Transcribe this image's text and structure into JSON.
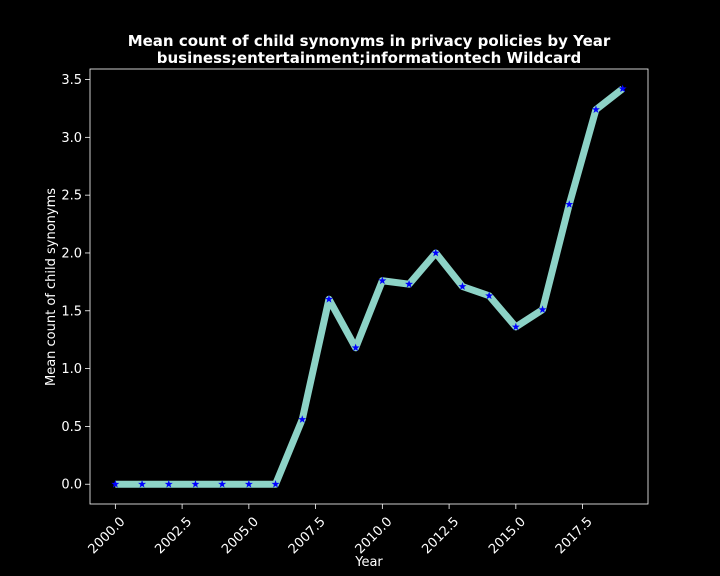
{
  "chart_data": {
    "type": "line",
    "title_line1": "Mean count of child synonyms in privacy policies by Year",
    "title_line2": "business;entertainment;informationtech Wildcard",
    "xlabel": "Year",
    "ylabel": "Mean count of child synonyms",
    "xlim": [
      1999.05,
      2019.95
    ],
    "ylim": [
      -0.171,
      3.591
    ],
    "x_ticks": [
      2000.0,
      2002.5,
      2005.0,
      2007.5,
      2010.0,
      2012.5,
      2015.0,
      2017.5
    ],
    "x_tick_labels": [
      "2000.0",
      "2002.5",
      "2005.0",
      "2007.5",
      "2010.0",
      "2012.5",
      "2015.0",
      "2017.5"
    ],
    "y_ticks": [
      0.0,
      0.5,
      1.0,
      1.5,
      2.0,
      2.5,
      3.0,
      3.5
    ],
    "y_tick_labels": [
      "0.0",
      "0.5",
      "1.0",
      "1.5",
      "2.0",
      "2.5",
      "3.0",
      "3.5"
    ],
    "grid": false,
    "line_color": "#8dd3c7",
    "marker_color": "#0000ff",
    "marker": "star",
    "series": [
      {
        "x": [
          2000,
          2001,
          2002,
          2003,
          2004,
          2005,
          2006,
          2007,
          2008,
          2009,
          2010,
          2011,
          2012,
          2013,
          2014,
          2015,
          2016,
          2017,
          2018,
          2019
        ],
        "values": [
          0.0,
          0.0,
          0.0,
          0.0,
          0.0,
          0.0,
          0.0,
          0.56,
          1.6,
          1.18,
          1.76,
          1.73,
          2.0,
          1.71,
          1.63,
          1.36,
          1.51,
          2.42,
          3.24,
          3.42
        ]
      }
    ]
  }
}
